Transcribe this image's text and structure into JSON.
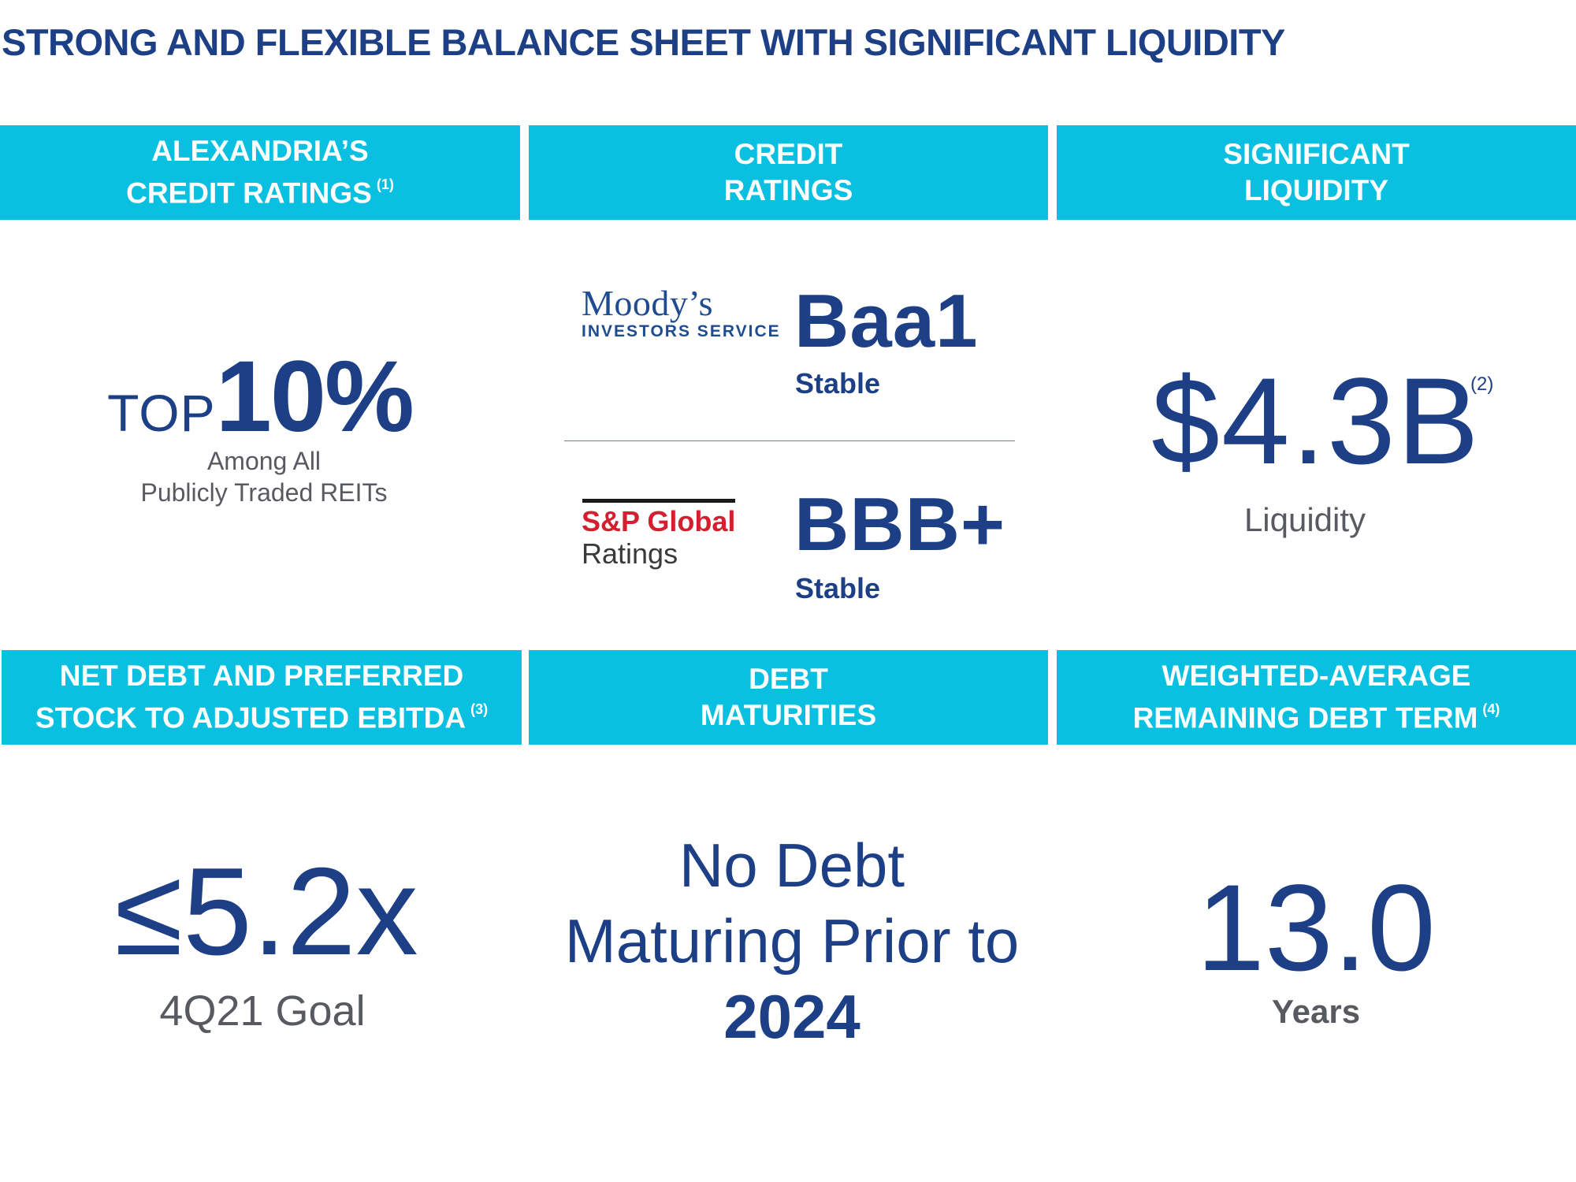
{
  "title": "STRONG AND FLEXIBLE BALANCE SHEET WITH SIGNIFICANT LIQUIDITY",
  "headers": {
    "alexandria": {
      "line1": "ALEXANDRIA’S",
      "line2": "CREDIT RATINGS",
      "note": "(1)"
    },
    "credit": {
      "line1": "CREDIT",
      "line2": "RATINGS"
    },
    "liquidity": {
      "line1": "SIGNIFICANT",
      "line2": "LIQUIDITY"
    },
    "net_debt": {
      "line1": "NET DEBT AND PREFERRED",
      "line2": "STOCK TO ADJUSTED EBITDA",
      "note": "(3)"
    },
    "maturities": {
      "line1": "DEBT",
      "line2": "MATURITIES"
    },
    "debt_term": {
      "line1": "WEIGHTED-AVERAGE",
      "line2": "REMAINING DEBT TERM",
      "note": "(4)"
    }
  },
  "ranking": {
    "prefix": "TOP",
    "value": "10%",
    "line1": "Among All",
    "line2": "Publicly Traded REITs"
  },
  "moodys": {
    "logo_name": "Moody’s",
    "logo_sub": "INVESTORS SERVICE",
    "rating": "Baa1",
    "outlook": "Stable"
  },
  "sp": {
    "logo_name": "S&P Global",
    "logo_sub": "Ratings",
    "rating": "BBB+",
    "outlook": "Stable"
  },
  "liquidity": {
    "value": "$4.3B",
    "note": "(2)",
    "label": "Liquidity"
  },
  "net_debt": {
    "value": "≤5.2x",
    "label": "4Q21 Goal"
  },
  "maturities": {
    "line1": "No Debt",
    "line2": "Maturing Prior to",
    "year": "2024"
  },
  "debt_term": {
    "value": "13.0",
    "label": "Years"
  },
  "colors": {
    "header_bg": "#09c0e0",
    "navy": "#1d3f86",
    "gray": "#585a62",
    "sp_red": "#d4202e"
  }
}
